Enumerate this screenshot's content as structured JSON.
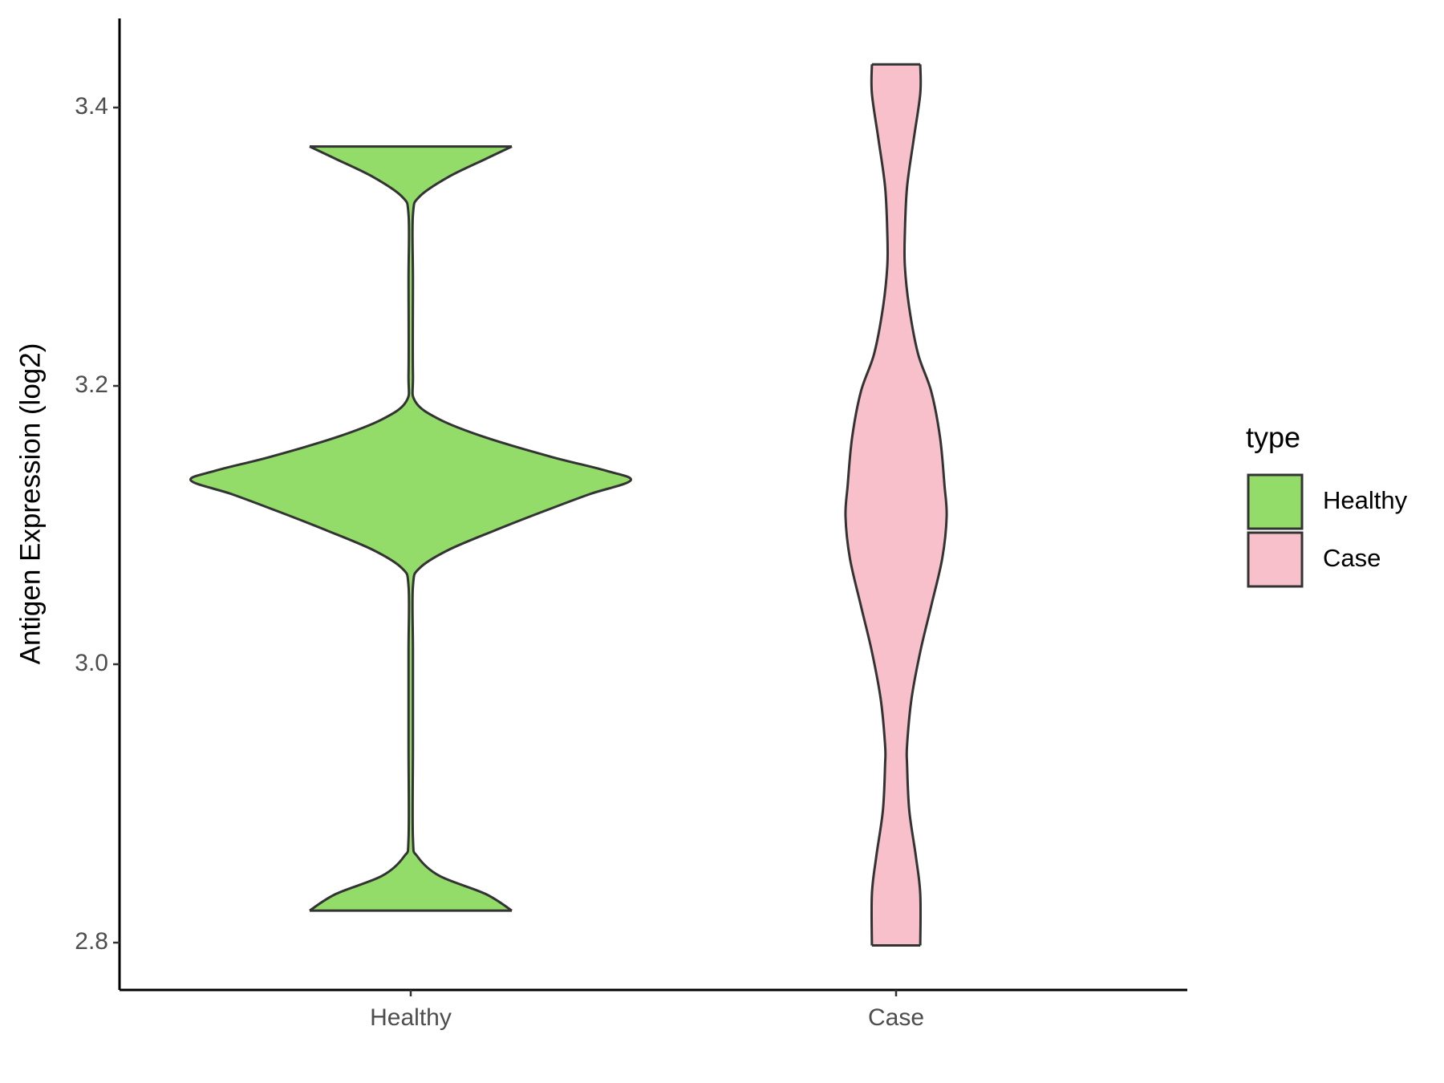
{
  "chart_data": {
    "type": "violin",
    "ylabel": "Antigen Expression (log2)",
    "categories": [
      "Healthy",
      "Case"
    ],
    "ylim": [
      2.766,
      3.464
    ],
    "yticks": [
      {
        "value": 2.8,
        "label": "2.8"
      },
      {
        "value": 3.0,
        "label": "3.0"
      },
      {
        "value": 3.2,
        "label": "3.2"
      },
      {
        "value": 3.4,
        "label": "3.4"
      }
    ],
    "legend_title": "type",
    "legend": "right",
    "series": [
      {
        "name": "Healthy",
        "color": "#93dc6a",
        "y": [
          3.372,
          3.363,
          3.35,
          3.336,
          3.323,
          3.276,
          3.209,
          3.189,
          3.176,
          3.163,
          3.149,
          3.139,
          3.132,
          3.122,
          3.109,
          3.096,
          3.082,
          3.069,
          3.056,
          3.009,
          2.942,
          2.875,
          2.862,
          2.848,
          2.835,
          2.823
        ],
        "density": [
          0.46,
          0.34,
          0.17,
          0.04,
          0.01,
          0.01,
          0.01,
          0.02,
          0.13,
          0.34,
          0.64,
          0.89,
          1,
          0.81,
          0.59,
          0.38,
          0.17,
          0.04,
          0.01,
          0.01,
          0.01,
          0.01,
          0.03,
          0.13,
          0.34,
          0.46
        ]
      },
      {
        "name": "Case",
        "color": "#f7c0cb",
        "y": [
          3.431,
          3.41,
          3.377,
          3.343,
          3.31,
          3.286,
          3.256,
          3.223,
          3.196,
          3.163,
          3.129,
          3.106,
          3.076,
          3.042,
          3.009,
          2.975,
          2.942,
          2.928,
          2.895,
          2.862,
          2.835,
          2.798
        ],
        "density": [
          0.11,
          0.11,
          0.08,
          0.05,
          0.04,
          0.04,
          0.06,
          0.1,
          0.16,
          0.2,
          0.22,
          0.23,
          0.21,
          0.16,
          0.11,
          0.07,
          0.05,
          0.05,
          0.06,
          0.09,
          0.11,
          0.11
        ]
      }
    ]
  }
}
